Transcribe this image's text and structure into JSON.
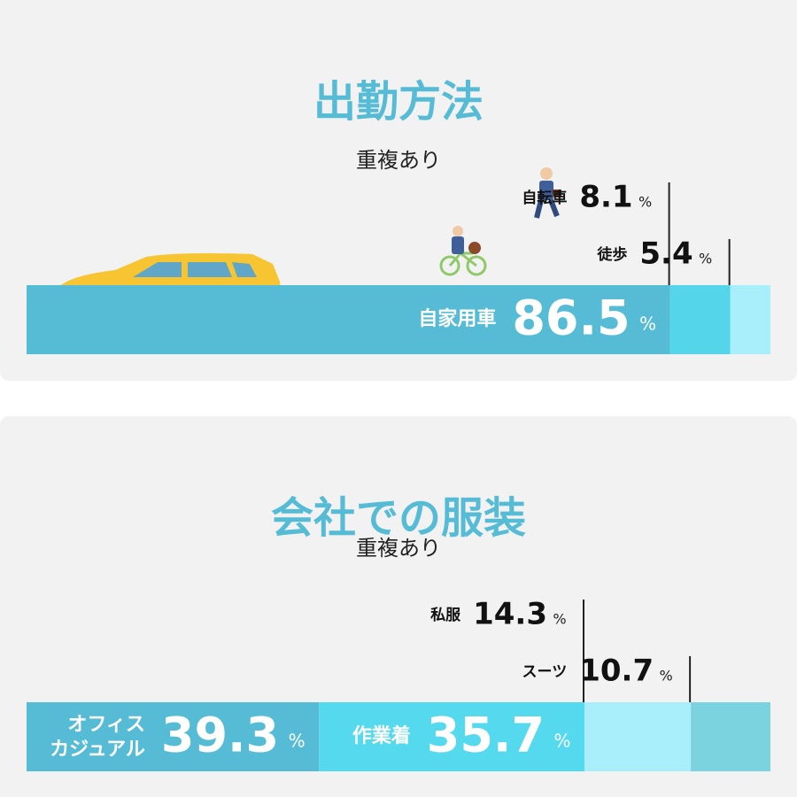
{
  "chart_data": [
    {
      "type": "stacked-bar",
      "title": "出勤方法",
      "subtitle": "重複あり",
      "unit": "%",
      "categories": [
        "自家用車",
        "自転車",
        "徒歩"
      ],
      "values": [
        86.5,
        8.1,
        5.4
      ],
      "colors": [
        "#56bcd6",
        "#55d5ea",
        "#a8eefb"
      ]
    },
    {
      "type": "stacked-bar",
      "title": "会社での服装",
      "subtitle": "重複あり",
      "unit": "%",
      "categories": [
        "オフィス\nカジュアル",
        "作業着",
        "私服",
        "スーツ"
      ],
      "values": [
        39.3,
        35.7,
        14.3,
        10.7
      ],
      "colors": [
        "#56bcd6",
        "#55d9ee",
        "#a8eefb",
        "#7ad3de"
      ]
    }
  ]
}
